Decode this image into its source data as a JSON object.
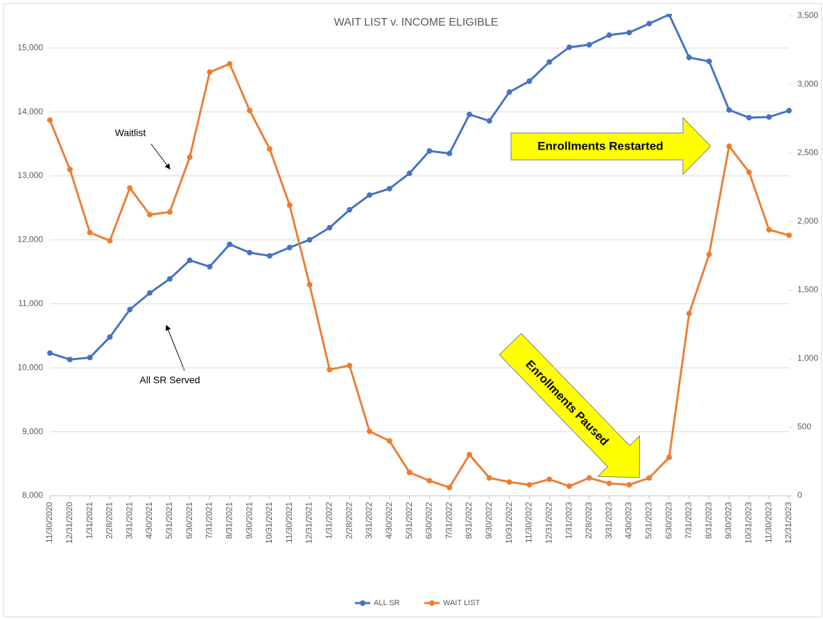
{
  "chart_data": {
    "type": "line",
    "title": "WAIT LIST v. INCOME ELIGIBLE",
    "categories": [
      "11/30/2020",
      "12/31/2020",
      "1/31/2021",
      "2/28/2021",
      "3/31/2021",
      "4/30/2021",
      "5/31/2021",
      "6/30/2021",
      "7/31/2021",
      "8/31/2021",
      "9/30/2021",
      "10/31/2021",
      "11/30/2021",
      "12/31/2021",
      "1/31/2022",
      "2/28/2022",
      "3/31/2022",
      "4/30/2022",
      "5/31/2022",
      "6/30/2022",
      "7/31/2022",
      "8/31/2022",
      "9/30/2022",
      "10/31/2022",
      "11/30/2022",
      "12/31/2022",
      "1/31/2023",
      "2/28/2023",
      "3/31/2023",
      "4/30/2023",
      "5/31/2023",
      "6/30/2023",
      "7/31/2023",
      "8/31/2023",
      "9/30/2023",
      "10/31/2023",
      "11/30/2023",
      "12/31/2023"
    ],
    "series": [
      {
        "name": "ALL SR",
        "color": "#4472c4",
        "values": [
          10230,
          10130,
          10160,
          10480,
          10910,
          11170,
          11390,
          11680,
          11580,
          11930,
          11800,
          11750,
          11880,
          12000,
          12190,
          12470,
          12700,
          12800,
          13040,
          13390,
          13350,
          13960,
          13860,
          14310,
          14480,
          14780,
          15010,
          15050,
          15200,
          15240,
          15380,
          15520,
          14850,
          14790,
          14030,
          13910,
          13920,
          14020
        ]
      },
      {
        "name": "WAIT LIST",
        "color": "#ed7d31",
        "axis": "y2",
        "values": [
          2740,
          2380,
          1920,
          1860,
          2245,
          2050,
          2070,
          2470,
          3090,
          3150,
          2810,
          2530,
          2120,
          1540,
          920,
          950,
          470,
          400,
          170,
          110,
          60,
          300,
          130,
          100,
          80,
          120,
          70,
          130,
          90,
          80,
          130,
          280,
          1330,
          1760,
          2550,
          2360,
          1940,
          1900
        ]
      }
    ],
    "ylim": [
      8000,
      15500
    ],
    "yticks": [
      {
        "value": 8000,
        "label": "8,000"
      },
      {
        "value": 9000,
        "label": "9,000"
      },
      {
        "value": 10000,
        "label": "10,000"
      },
      {
        "value": 11000,
        "label": "11,000"
      },
      {
        "value": 12000,
        "label": "12,000"
      },
      {
        "value": 13000,
        "label": "13,000"
      },
      {
        "value": 14000,
        "label": "14,000"
      },
      {
        "value": 15000,
        "label": "15,000"
      }
    ],
    "y2lim": [
      0,
      3500
    ],
    "y2ticks": [
      0,
      500,
      {
        "value": 1000,
        "label": "1,000"
      },
      {
        "value": 1500,
        "label": "1,500"
      },
      {
        "value": 2000,
        "label": "2,000"
      },
      {
        "value": 2500,
        "label": "2,500"
      },
      {
        "value": 3000,
        "label": "3,000"
      },
      {
        "value": 3500,
        "label": "3,500"
      }
    ],
    "grid": true,
    "legend": "bottom",
    "annotations": [
      "Waitlist",
      "All SR Served",
      "Enrollments Restarted",
      "Enrollments Paused"
    ]
  }
}
